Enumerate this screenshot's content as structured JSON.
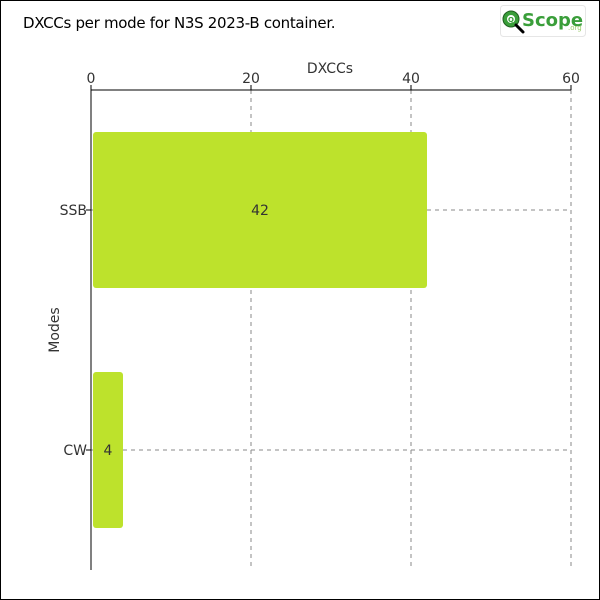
{
  "chart_data": {
    "type": "bar",
    "orientation": "horizontal",
    "title": "DXCCs per mode for N3S 2023-B container.",
    "xlabel": "DXCCs",
    "ylabel": "Modes",
    "categories": [
      "SSB",
      "CW"
    ],
    "values": [
      42,
      4
    ],
    "xlim": [
      0,
      60
    ],
    "xticks": [
      0,
      20,
      40,
      60
    ],
    "grid": true,
    "x_axis_position": "top",
    "bar_color": "#bde22c"
  },
  "logo": {
    "text": "Scope",
    "suffix": ".org",
    "circle_color": "#3a9e3a",
    "text_color": "#3a9e3a"
  }
}
